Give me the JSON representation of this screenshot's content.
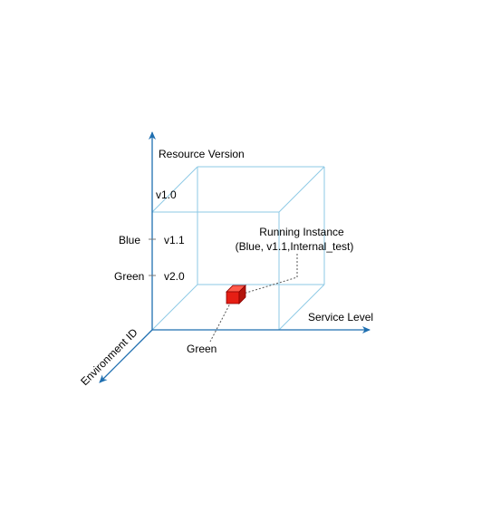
{
  "axes": {
    "vertical_label": "Resource Version",
    "horizontal_label": "Service Level",
    "diagonal_label": "Environment ID"
  },
  "version_ticks": [
    "v1.0",
    "v1.1",
    "v2.0"
  ],
  "env_ticks": [
    "Blue",
    "Green"
  ],
  "bottom_label": "Green",
  "callout": {
    "title": "Running Instance",
    "subtitle": "(Blue, v1.1,Internal_test)"
  },
  "colors": {
    "axis": "#1f6fb0",
    "cube_edge": "#8ecae6",
    "instance_fill": "#e61e14",
    "instance_stroke": "#8b0000"
  }
}
